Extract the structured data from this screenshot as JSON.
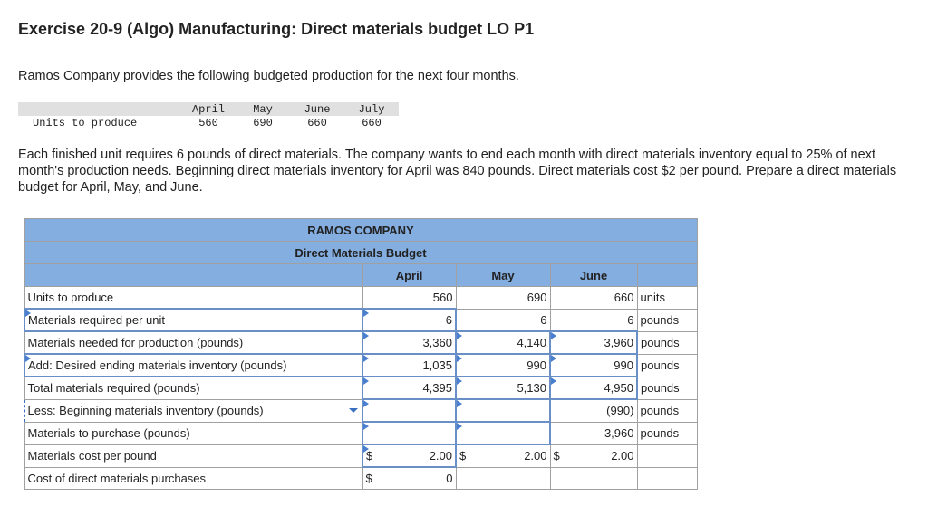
{
  "title": "Exercise 20-9 (Algo) Manufacturing: Direct materials budget LO P1",
  "intro": "Ramos Company provides the following budgeted production for the next four months.",
  "production": {
    "row_label": "Units to produce",
    "months": [
      "April",
      "May",
      "June",
      "July"
    ],
    "units": [
      "560",
      "690",
      "660",
      "660"
    ]
  },
  "paragraph": "Each finished unit requires 6 pounds of direct materials. The company wants to end each month with direct materials inventory equal to 25% of next month's production needs. Beginning direct materials inventory for April was 840 pounds. Direct materials cost $2 per pound. Prepare a direct materials budget for April, May, and June.",
  "budget": {
    "company": "RAMOS COMPANY",
    "name": "Direct Materials Budget",
    "columns": [
      "April",
      "May",
      "June"
    ],
    "rows": [
      {
        "label": "Units to produce",
        "values": [
          "560",
          "690",
          "660"
        ],
        "unit": "units"
      },
      {
        "label": "Materials required per unit",
        "values": [
          "6",
          "6",
          "6"
        ],
        "unit": "pounds"
      },
      {
        "label": "Materials needed for production (pounds)",
        "values": [
          "3,360",
          "4,140",
          "3,960"
        ],
        "unit": "pounds"
      },
      {
        "label": "Add: Desired ending materials inventory (pounds)",
        "values": [
          "1,035",
          "990",
          "990"
        ],
        "unit": "pounds"
      },
      {
        "label": "Total materials required (pounds)",
        "values": [
          "4,395",
          "5,130",
          "4,950"
        ],
        "unit": "pounds"
      },
      {
        "label": "Less: Beginning materials inventory (pounds)",
        "values": [
          "",
          "",
          "(990)"
        ],
        "unit": "pounds"
      },
      {
        "label": "Materials to purchase (pounds)",
        "values": [
          "",
          "",
          "3,960"
        ],
        "unit": "pounds"
      },
      {
        "label": "Materials cost per pound",
        "values": [
          "2.00",
          "2.00",
          "2.00"
        ],
        "unit": ""
      },
      {
        "label": "Cost of direct materials purchases",
        "values": [
          "0",
          "",
          ""
        ],
        "unit": ""
      }
    ],
    "currency": "$"
  }
}
